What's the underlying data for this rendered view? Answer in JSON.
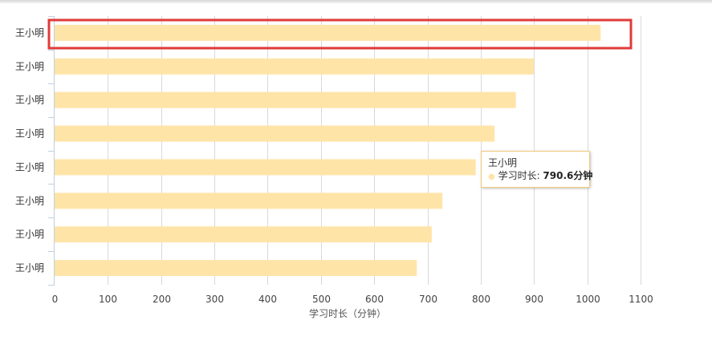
{
  "chart_data": {
    "type": "bar",
    "orientation": "horizontal",
    "categories": [
      "王小明",
      "王小明",
      "王小明",
      "王小明",
      "王小明",
      "王小明",
      "王小明",
      "王小明"
    ],
    "series": [
      {
        "name": "学习时长",
        "values": [
          1025,
          900,
          866,
          826,
          790.6,
          728,
          708,
          680
        ]
      }
    ],
    "xlabel": "学习时长（分钟）",
    "ylabel": "",
    "xlim": [
      0,
      1100
    ],
    "xticks": [
      "0",
      "100",
      "200",
      "300",
      "400",
      "500",
      "600",
      "700",
      "800",
      "900",
      "1000",
      "1100"
    ],
    "grid": "vertical",
    "colors": {
      "bar": "#ffe4a8",
      "grid": "#d9d9d9",
      "axis": "#c0d0e0",
      "highlight": "#e03a3a",
      "tooltip_border": "#f3c97a"
    },
    "highlight_index": 0
  },
  "tooltip": {
    "name": "王小明",
    "series_label": "学习时长: ",
    "value_text": "790.6分钟",
    "point_index": 4
  }
}
